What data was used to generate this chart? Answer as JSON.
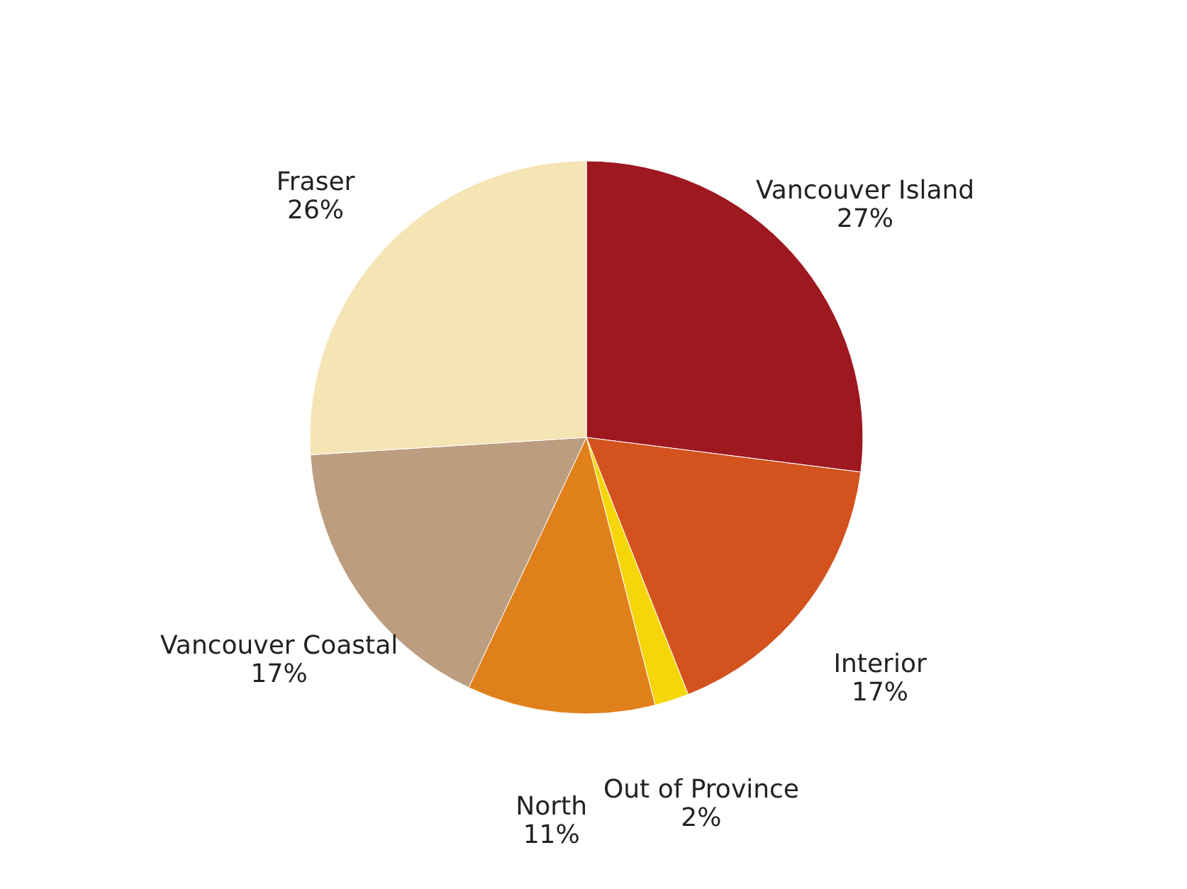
{
  "chart_data": {
    "type": "pie",
    "categories": [
      "Vancouver Island",
      "Interior",
      "Out of Province",
      "North",
      "Vancouver Coastal",
      "Fraser"
    ],
    "values": [
      27,
      17,
      2,
      11,
      17,
      26
    ],
    "value_labels": [
      "27%",
      "17%",
      "2%",
      "11%",
      "17%",
      "26%"
    ],
    "colors": [
      "#9e1820",
      "#d3521e",
      "#f5d60a",
      "#e0801a",
      "#bc9d80",
      "#f5e4b4"
    ],
    "legend": false
  }
}
